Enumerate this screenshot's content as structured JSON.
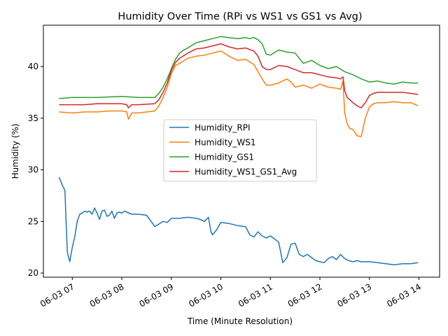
{
  "chart_data": {
    "type": "line",
    "title": "Humidity Over Time (RPi vs WS1 vs GS1 vs Avg)",
    "xlabel": "Time (Minute Resolution)",
    "ylabel": "Humidity (%)",
    "xlim": [
      "06-03 06:25",
      "06-03 14:25"
    ],
    "ylim": [
      19.6,
      44.0
    ],
    "x_ticks": [
      "06-03 07",
      "06-03 08",
      "06-03 09",
      "06-03 10",
      "06-03 11",
      "06-03 12",
      "06-03 13",
      "06-03 14"
    ],
    "y_ticks": [
      20,
      25,
      30,
      35,
      40
    ],
    "grid": false,
    "legend_position": "center",
    "series": [
      {
        "name": "Humidity_RPI",
        "color": "#1f77b4",
        "x": [
          "06:44",
          "06:48",
          "06:51",
          "06:54",
          "06:57",
          "07:00",
          "07:03",
          "07:06",
          "07:09",
          "07:12",
          "07:15",
          "07:18",
          "07:21",
          "07:24",
          "07:27",
          "07:30",
          "07:33",
          "07:36",
          "07:39",
          "07:42",
          "07:45",
          "07:48",
          "07:51",
          "07:54",
          "07:57",
          "08:00",
          "08:03",
          "08:06",
          "08:09",
          "08:12",
          "08:15",
          "08:20",
          "08:30",
          "08:40",
          "08:50",
          "08:55",
          "09:00",
          "09:10",
          "09:20",
          "09:30",
          "09:35",
          "09:40",
          "09:45",
          "09:48",
          "09:50",
          "09:55",
          "10:00",
          "10:10",
          "10:20",
          "10:30",
          "10:35",
          "10:40",
          "10:45",
          "10:50",
          "10:55",
          "11:00",
          "11:10",
          "11:15",
          "11:20",
          "11:25",
          "11:30",
          "11:35",
          "11:40",
          "11:45",
          "11:50",
          "11:55",
          "12:00",
          "12:05",
          "12:10",
          "12:15",
          "12:20",
          "12:25",
          "12:30",
          "12:35",
          "12:40",
          "12:45",
          "12:50",
          "13:00",
          "13:10",
          "13:20",
          "13:30",
          "13:40",
          "13:50",
          "13:59"
        ],
        "y": [
          29.3,
          28.5,
          28.0,
          22.0,
          21.1,
          22.5,
          23.5,
          25.0,
          25.7,
          25.8,
          26.0,
          25.9,
          26.0,
          25.7,
          26.3,
          25.8,
          25.2,
          26.0,
          26.1,
          25.5,
          25.6,
          26.0,
          25.3,
          25.8,
          25.9,
          25.8,
          26.0,
          25.9,
          25.8,
          25.7,
          25.7,
          25.7,
          25.6,
          24.5,
          25.0,
          24.9,
          25.3,
          25.3,
          25.4,
          25.3,
          25.2,
          25.0,
          25.4,
          24.0,
          23.7,
          24.2,
          24.9,
          24.8,
          24.6,
          24.5,
          23.7,
          23.5,
          24.0,
          23.6,
          23.4,
          23.6,
          23.0,
          21.0,
          21.5,
          22.8,
          22.9,
          21.8,
          21.6,
          21.8,
          21.5,
          21.2,
          21.1,
          21.0,
          21.4,
          21.6,
          21.3,
          21.8,
          21.4,
          21.2,
          21.1,
          21.2,
          21.1,
          21.1,
          21.0,
          20.9,
          20.8,
          20.9,
          20.9,
          21.0
        ]
      },
      {
        "name": "Humidity_WS1",
        "color": "#ff7f0e",
        "x": [
          "06:44",
          "07:00",
          "07:15",
          "07:30",
          "07:45",
          "08:00",
          "08:06",
          "08:08",
          "08:12",
          "08:20",
          "08:40",
          "08:45",
          "08:50",
          "08:55",
          "09:00",
          "09:05",
          "09:10",
          "09:20",
          "09:30",
          "09:40",
          "09:50",
          "10:00",
          "10:10",
          "10:20",
          "10:30",
          "10:40",
          "10:50",
          "10:55",
          "11:00",
          "11:10",
          "11:15",
          "11:20",
          "11:25",
          "11:30",
          "11:40",
          "11:50",
          "12:00",
          "12:10",
          "12:20",
          "12:25",
          "12:28",
          "12:30",
          "12:33",
          "12:36",
          "12:40",
          "12:45",
          "12:50",
          "12:55",
          "13:00",
          "13:05",
          "13:10",
          "13:20",
          "13:30",
          "13:40",
          "13:50",
          "13:59"
        ],
        "y": [
          35.6,
          35.5,
          35.6,
          35.6,
          35.7,
          35.7,
          35.6,
          34.9,
          35.5,
          35.5,
          35.7,
          36.2,
          37.0,
          38.0,
          39.3,
          40.1,
          40.3,
          40.8,
          41.0,
          41.1,
          41.3,
          41.5,
          41.0,
          40.6,
          40.7,
          40.2,
          38.8,
          38.2,
          38.2,
          38.4,
          38.6,
          38.8,
          38.5,
          38.0,
          38.2,
          37.9,
          38.3,
          38.0,
          37.9,
          37.8,
          38.6,
          35.5,
          34.5,
          34.0,
          33.9,
          33.3,
          33.2,
          35.0,
          36.1,
          36.4,
          36.5,
          36.5,
          36.6,
          36.5,
          36.5,
          36.2
        ]
      },
      {
        "name": "Humidity_GS1",
        "color": "#2ca02c",
        "x": [
          "06:44",
          "07:00",
          "07:30",
          "08:00",
          "08:20",
          "08:40",
          "08:45",
          "08:50",
          "08:55",
          "09:00",
          "09:05",
          "09:10",
          "09:15",
          "09:20",
          "09:30",
          "09:40",
          "09:50",
          "10:00",
          "10:10",
          "10:20",
          "10:30",
          "10:35",
          "10:40",
          "10:45",
          "10:50",
          "10:55",
          "11:00",
          "11:10",
          "11:20",
          "11:30",
          "11:40",
          "11:50",
          "12:00",
          "12:10",
          "12:20",
          "12:30",
          "12:40",
          "12:50",
          "13:00",
          "13:10",
          "13:20",
          "13:30",
          "13:40",
          "13:50",
          "13:59"
        ],
        "y": [
          36.9,
          37.0,
          37.0,
          37.1,
          37.0,
          37.0,
          37.4,
          38.0,
          38.8,
          39.8,
          40.7,
          41.3,
          41.6,
          41.8,
          42.3,
          42.5,
          42.7,
          42.9,
          42.8,
          42.7,
          42.8,
          42.7,
          42.8,
          42.6,
          42.2,
          41.2,
          41.1,
          41.6,
          41.4,
          41.3,
          40.3,
          40.6,
          40.1,
          39.8,
          40.0,
          39.5,
          39.2,
          38.8,
          38.5,
          38.6,
          38.4,
          38.3,
          38.5,
          38.4,
          38.4
        ]
      },
      {
        "name": "Humidity_WS1_GS1_Avg",
        "color": "#d62728",
        "x": [
          "06:44",
          "07:00",
          "07:15",
          "07:30",
          "07:45",
          "08:00",
          "08:06",
          "08:08",
          "08:12",
          "08:20",
          "08:40",
          "08:45",
          "08:50",
          "08:55",
          "09:00",
          "09:05",
          "09:10",
          "09:20",
          "09:30",
          "09:40",
          "09:50",
          "10:00",
          "10:10",
          "10:20",
          "10:30",
          "10:40",
          "10:45",
          "10:50",
          "10:55",
          "11:00",
          "11:10",
          "11:20",
          "11:30",
          "11:40",
          "11:50",
          "12:00",
          "12:10",
          "12:20",
          "12:25",
          "12:28",
          "12:30",
          "12:33",
          "12:36",
          "12:40",
          "12:45",
          "12:50",
          "12:55",
          "13:00",
          "13:05",
          "13:10",
          "13:20",
          "13:30",
          "13:40",
          "13:50",
          "13:59"
        ],
        "y": [
          36.3,
          36.3,
          36.3,
          36.4,
          36.4,
          36.4,
          36.3,
          36.0,
          36.3,
          36.3,
          36.4,
          36.8,
          37.5,
          38.4,
          39.6,
          40.4,
          40.8,
          41.3,
          41.7,
          41.8,
          42.0,
          42.2,
          41.9,
          41.7,
          41.8,
          41.5,
          41.0,
          40.0,
          39.7,
          39.7,
          40.1,
          40.0,
          39.7,
          39.4,
          39.4,
          39.2,
          39.0,
          38.9,
          38.8,
          39.0,
          37.7,
          37.0,
          36.8,
          36.5,
          36.2,
          36.0,
          36.5,
          37.2,
          37.4,
          37.5,
          37.5,
          37.5,
          37.5,
          37.4,
          37.3
        ]
      }
    ]
  }
}
